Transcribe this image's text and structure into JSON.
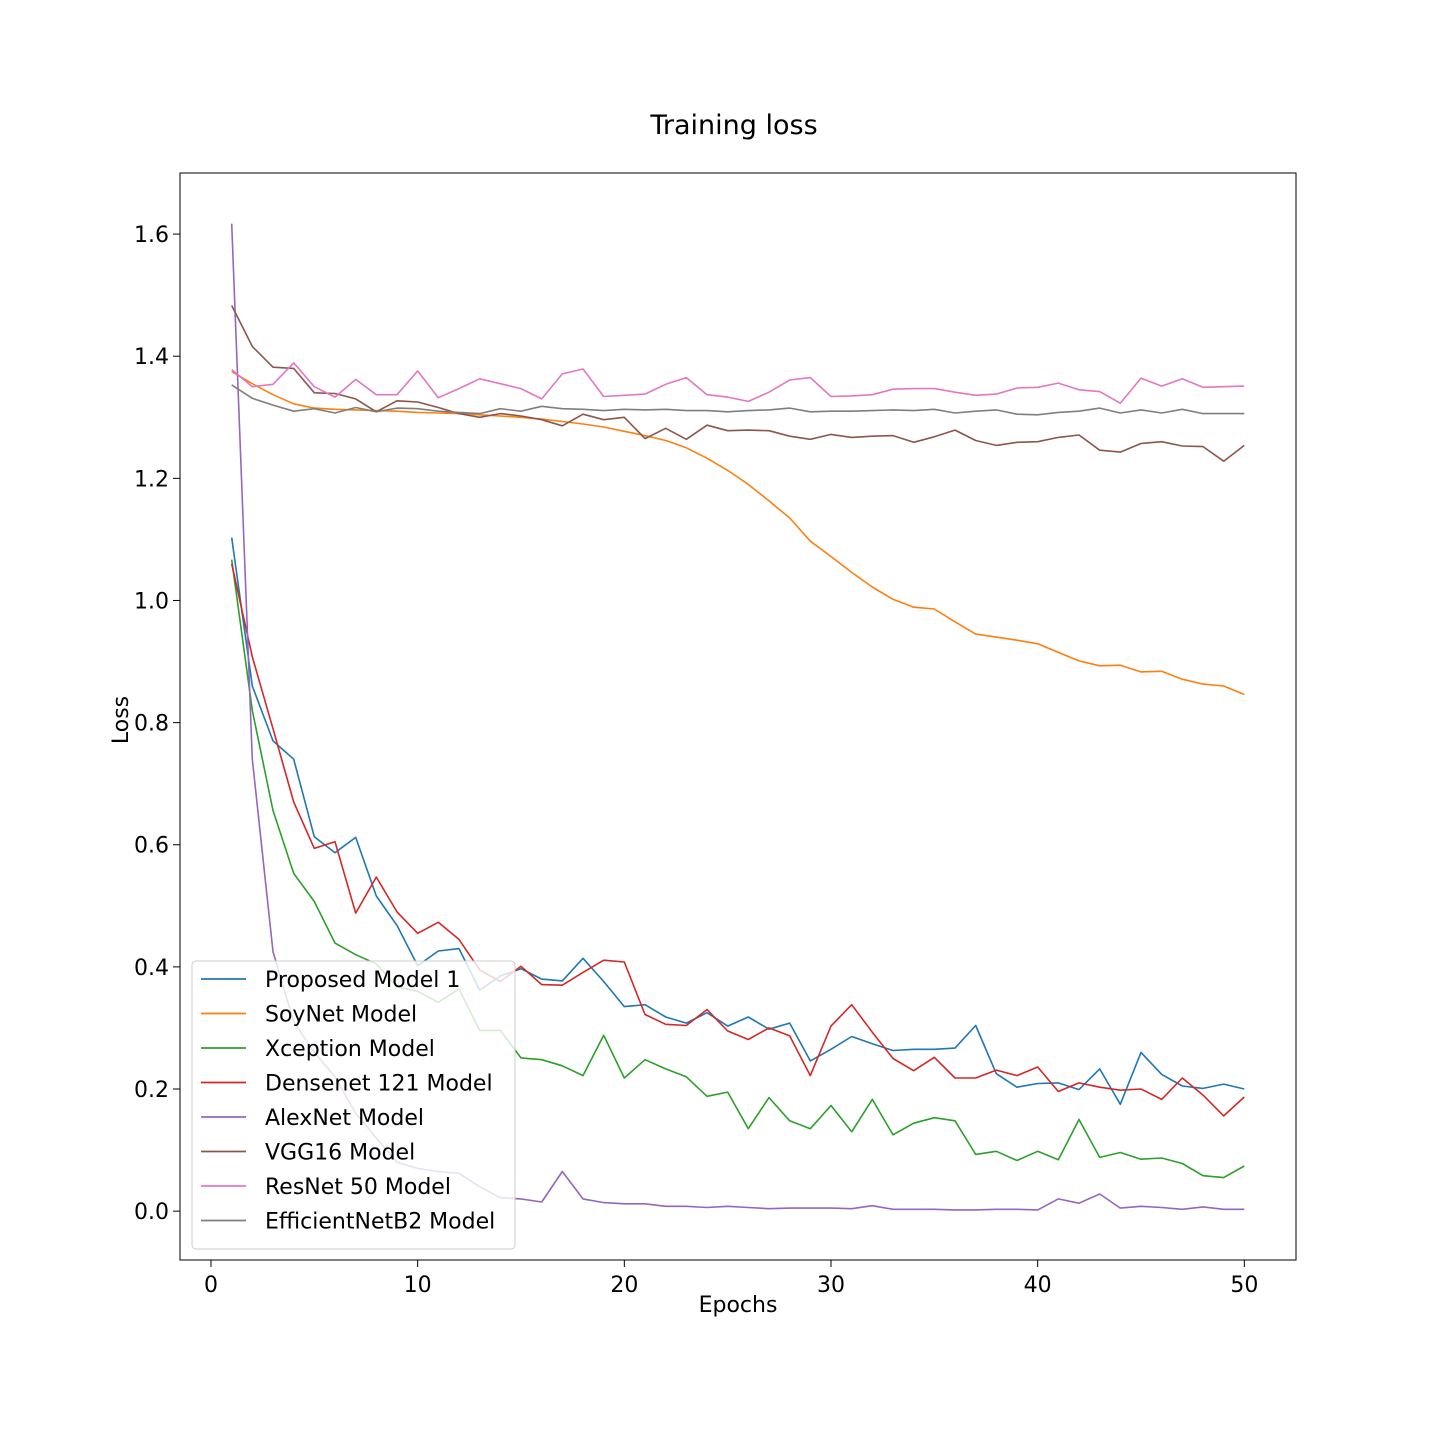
{
  "chart_data": {
    "type": "line",
    "title": "Training loss",
    "xlabel": "Epochs",
    "ylabel": "Loss",
    "xlim": [
      -1.5,
      52.5
    ],
    "ylim": [
      -0.08,
      1.7
    ],
    "xticks": [
      0,
      10,
      20,
      30,
      40,
      50
    ],
    "yticks": [
      0.0,
      0.2,
      0.4,
      0.6,
      0.8,
      1.0,
      1.2,
      1.4,
      1.6
    ],
    "xtick_labels": [
      "0",
      "10",
      "20",
      "30",
      "40",
      "50"
    ],
    "ytick_labels": [
      "0.0",
      "0.2",
      "0.4",
      "0.6",
      "0.8",
      "1.0",
      "1.2",
      "1.4",
      "1.6"
    ],
    "grid": false,
    "legend_position": "lower-left",
    "x": [
      1,
      2,
      3,
      4,
      5,
      6,
      7,
      8,
      9,
      10,
      11,
      12,
      13,
      14,
      15,
      16,
      17,
      18,
      19,
      20,
      21,
      22,
      23,
      24,
      25,
      26,
      27,
      28,
      29,
      30,
      31,
      32,
      33,
      34,
      35,
      36,
      37,
      38,
      39,
      40,
      41,
      42,
      43,
      44,
      45,
      46,
      47,
      48,
      49,
      50
    ],
    "series": [
      {
        "name": "Proposed Model 1",
        "color": "#1f77b4",
        "values": [
          1.103,
          0.86,
          0.77,
          0.74,
          0.613,
          0.587,
          0.612,
          0.516,
          0.468,
          0.402,
          0.426,
          0.43,
          0.362,
          0.385,
          0.397,
          0.38,
          0.377,
          0.414,
          0.376,
          0.335,
          0.338,
          0.318,
          0.308,
          0.325,
          0.303,
          0.318,
          0.298,
          0.308,
          0.246,
          0.265,
          0.286,
          0.274,
          0.263,
          0.265,
          0.265,
          0.267,
          0.304,
          0.225,
          0.203,
          0.209,
          0.21,
          0.199,
          0.233,
          0.175,
          0.26,
          0.224,
          0.205,
          0.201,
          0.208,
          0.2
        ]
      },
      {
        "name": "SoyNet Model",
        "color": "#ff7f0e",
        "values": [
          1.375,
          1.355,
          1.337,
          1.322,
          1.315,
          1.313,
          1.312,
          1.311,
          1.31,
          1.308,
          1.307,
          1.306,
          1.304,
          1.302,
          1.3,
          1.297,
          1.293,
          1.289,
          1.284,
          1.277,
          1.27,
          1.262,
          1.25,
          1.233,
          1.213,
          1.19,
          1.163,
          1.135,
          1.097,
          1.072,
          1.046,
          1.022,
          1.002,
          0.989,
          0.986,
          0.965,
          0.945,
          0.94,
          0.935,
          0.929,
          0.915,
          0.901,
          0.893,
          0.894,
          0.883,
          0.884,
          0.871,
          0.863,
          0.86,
          0.846
        ]
      },
      {
        "name": "Xception Model",
        "color": "#2ca02c",
        "values": [
          1.067,
          0.82,
          0.656,
          0.553,
          0.507,
          0.439,
          0.42,
          0.405,
          0.367,
          0.36,
          0.342,
          0.364,
          0.296,
          0.296,
          0.251,
          0.248,
          0.238,
          0.222,
          0.288,
          0.218,
          0.248,
          0.233,
          0.22,
          0.188,
          0.195,
          0.135,
          0.186,
          0.148,
          0.135,
          0.173,
          0.13,
          0.183,
          0.125,
          0.144,
          0.153,
          0.148,
          0.093,
          0.098,
          0.083,
          0.098,
          0.084,
          0.15,
          0.088,
          0.096,
          0.085,
          0.087,
          0.078,
          0.058,
          0.055,
          0.074
        ]
      },
      {
        "name": "Densenet 121 Model",
        "color": "#d62728",
        "values": [
          1.06,
          0.908,
          0.79,
          0.67,
          0.594,
          0.605,
          0.488,
          0.547,
          0.49,
          0.455,
          0.473,
          0.445,
          0.395,
          0.376,
          0.401,
          0.371,
          0.37,
          0.391,
          0.411,
          0.408,
          0.322,
          0.306,
          0.304,
          0.33,
          0.295,
          0.281,
          0.3,
          0.287,
          0.222,
          0.303,
          0.338,
          0.293,
          0.25,
          0.23,
          0.252,
          0.218,
          0.218,
          0.231,
          0.222,
          0.236,
          0.196,
          0.21,
          0.203,
          0.198,
          0.2,
          0.183,
          0.218,
          0.19,
          0.156,
          0.187
        ]
      },
      {
        "name": "AlexNet Model",
        "color": "#9467bd",
        "values": [
          1.617,
          0.74,
          0.425,
          0.31,
          0.26,
          0.22,
          0.16,
          0.12,
          0.08,
          0.07,
          0.065,
          0.062,
          0.04,
          0.022,
          0.02,
          0.015,
          0.065,
          0.02,
          0.014,
          0.012,
          0.012,
          0.008,
          0.008,
          0.006,
          0.008,
          0.006,
          0.004,
          0.005,
          0.005,
          0.005,
          0.004,
          0.009,
          0.003,
          0.003,
          0.003,
          0.002,
          0.002,
          0.003,
          0.003,
          0.002,
          0.02,
          0.013,
          0.028,
          0.005,
          0.008,
          0.006,
          0.003,
          0.007,
          0.003,
          0.003
        ]
      },
      {
        "name": "VGG16 Model",
        "color": "#8c564b",
        "values": [
          1.483,
          1.416,
          1.382,
          1.38,
          1.34,
          1.339,
          1.33,
          1.309,
          1.327,
          1.325,
          1.316,
          1.306,
          1.3,
          1.306,
          1.302,
          1.296,
          1.286,
          1.305,
          1.296,
          1.3,
          1.265,
          1.282,
          1.264,
          1.287,
          1.278,
          1.279,
          1.278,
          1.269,
          1.264,
          1.272,
          1.267,
          1.269,
          1.27,
          1.259,
          1.268,
          1.279,
          1.262,
          1.254,
          1.259,
          1.26,
          1.267,
          1.271,
          1.246,
          1.243,
          1.257,
          1.26,
          1.253,
          1.252,
          1.228,
          1.254
        ]
      },
      {
        "name": "ResNet 50 Model",
        "color": "#e377c2",
        "values": [
          1.378,
          1.35,
          1.354,
          1.389,
          1.35,
          1.333,
          1.362,
          1.337,
          1.337,
          1.376,
          1.332,
          1.347,
          1.363,
          1.355,
          1.347,
          1.33,
          1.371,
          1.379,
          1.334,
          1.336,
          1.338,
          1.354,
          1.365,
          1.337,
          1.333,
          1.326,
          1.341,
          1.361,
          1.365,
          1.334,
          1.335,
          1.337,
          1.346,
          1.347,
          1.347,
          1.341,
          1.336,
          1.338,
          1.348,
          1.349,
          1.356,
          1.345,
          1.342,
          1.323,
          1.364,
          1.351,
          1.363,
          1.349,
          1.35,
          1.351
        ]
      },
      {
        "name": "EfficientNetB2 Model",
        "color": "#7f7f7f",
        "values": [
          1.353,
          1.331,
          1.32,
          1.31,
          1.314,
          1.307,
          1.316,
          1.309,
          1.315,
          1.314,
          1.31,
          1.308,
          1.306,
          1.314,
          1.31,
          1.318,
          1.314,
          1.313,
          1.311,
          1.313,
          1.312,
          1.313,
          1.311,
          1.311,
          1.309,
          1.311,
          1.312,
          1.315,
          1.309,
          1.31,
          1.31,
          1.311,
          1.312,
          1.311,
          1.313,
          1.307,
          1.31,
          1.312,
          1.305,
          1.304,
          1.308,
          1.31,
          1.315,
          1.307,
          1.312,
          1.307,
          1.313,
          1.306,
          1.306,
          1.306
        ]
      }
    ]
  }
}
